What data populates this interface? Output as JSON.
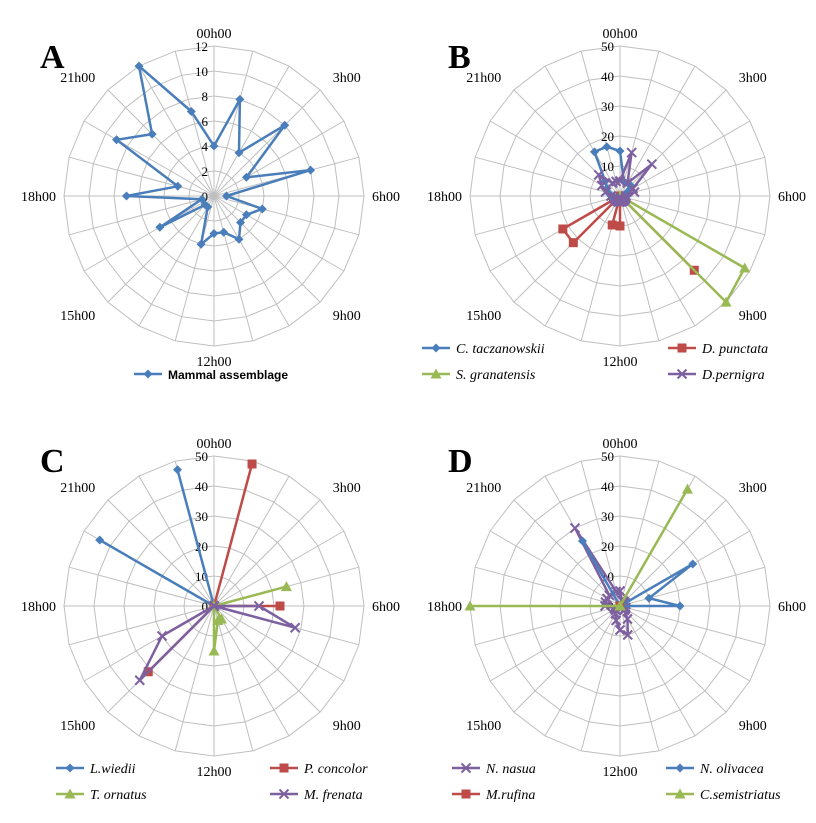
{
  "hour_labels": [
    "00h00",
    "3h00",
    "6h00",
    "9h00",
    "12h00",
    "15h00",
    "18h00",
    "21h00"
  ],
  "colors": {
    "blue": "#4a7ebb",
    "red": "#be4b48",
    "green": "#98b954",
    "purple": "#7d60a0",
    "grid": "#bfbfbf"
  },
  "chart_data": [
    {
      "type": "radar",
      "panel": "A",
      "rmax": 12,
      "ticks": [
        0,
        2,
        4,
        6,
        8,
        10,
        12
      ],
      "categories_per_hour": 1,
      "series": [
        {
          "name": "Mammal assemblage",
          "color": "blue",
          "marker": "diamond",
          "values": [
            4,
            8,
            4,
            8,
            3,
            8,
            1,
            4,
            3,
            3,
            4,
            3,
            3,
            4,
            1,
            1,
            5,
            1,
            7,
            3,
            9,
            7,
            12,
            7
          ]
        }
      ]
    },
    {
      "type": "radar",
      "panel": "B",
      "rmax": 50,
      "ticks": [
        0,
        10,
        20,
        30,
        40,
        50
      ],
      "series": [
        {
          "name": "C. taczanowskii",
          "color": "blue",
          "marker": "diamond",
          "values": [
            15,
            5,
            5,
            5,
            3,
            3,
            2,
            2,
            2,
            2,
            2,
            2,
            2,
            2,
            2,
            2,
            2,
            2,
            3,
            4,
            5,
            7,
            17,
            17
          ]
        },
        {
          "name": "D. punctata",
          "color": "red",
          "marker": "square",
          "values": [
            0,
            0,
            0,
            0,
            0,
            0,
            0,
            0,
            0,
            35,
            0,
            0,
            10,
            10,
            0,
            22,
            22,
            0,
            0,
            0,
            0,
            0,
            0,
            0
          ]
        },
        {
          "name": "S. granatensis",
          "color": "green",
          "marker": "triangle",
          "values": [
            0,
            0,
            0,
            0,
            0,
            0,
            0,
            0,
            48,
            50,
            0,
            0,
            0,
            0,
            0,
            0,
            0,
            0,
            0,
            0,
            0,
            0,
            0,
            0
          ]
        },
        {
          "name": "D.pernigra",
          "color": "purple",
          "marker": "x",
          "values": [
            5,
            15,
            5,
            15,
            5,
            5,
            2,
            2,
            2,
            2,
            2,
            2,
            2,
            2,
            2,
            2,
            2,
            2,
            3,
            5,
            7,
            10,
            5,
            5
          ]
        }
      ]
    },
    {
      "type": "radar",
      "panel": "C",
      "rmax": 50,
      "ticks": [
        0,
        10,
        20,
        30,
        40,
        50
      ],
      "series": [
        {
          "name": "L.wiedii",
          "color": "blue",
          "marker": "diamond",
          "values": [
            0,
            0,
            0,
            0,
            0,
            0,
            0,
            0,
            0,
            0,
            0,
            0,
            0,
            0,
            0,
            0,
            0,
            0,
            0,
            0,
            44,
            0,
            0,
            47
          ]
        },
        {
          "name": "P. concolor",
          "color": "red",
          "marker": "square",
          "values": [
            0,
            49,
            0,
            0,
            0,
            0,
            22,
            0,
            0,
            0,
            0,
            0,
            0,
            0,
            0,
            31,
            0,
            0,
            0,
            0,
            0,
            0,
            0,
            0
          ]
        },
        {
          "name": "T. ornatus",
          "color": "green",
          "marker": "triangle",
          "values": [
            0,
            0,
            0,
            0,
            0,
            25,
            0,
            0,
            0,
            0,
            5,
            5,
            15,
            0,
            0,
            0,
            0,
            0,
            0,
            0,
            0,
            0,
            0,
            0
          ]
        },
        {
          "name": "M. frenata",
          "color": "purple",
          "marker": "x",
          "values": [
            0,
            0,
            0,
            0,
            0,
            0,
            15,
            28,
            0,
            0,
            0,
            0,
            0,
            0,
            0,
            35,
            20,
            0,
            0,
            0,
            0,
            0,
            0,
            0
          ]
        }
      ]
    },
    {
      "type": "radar",
      "panel": "D",
      "rmax": 50,
      "ticks": [
        0,
        10,
        20,
        30,
        40,
        50
      ],
      "series": [
        {
          "name": "N. nasua",
          "color": "purple",
          "marker": "x",
          "values": [
            5,
            2,
            2,
            2,
            2,
            2,
            0,
            2,
            2,
            2,
            5,
            10,
            8,
            5,
            3,
            2,
            2,
            2,
            5,
            5,
            5,
            5,
            30,
            5
          ]
        },
        {
          "name": "N. olivacea",
          "color": "blue",
          "marker": "diamond",
          "values": [
            0,
            0,
            0,
            0,
            28,
            10,
            20,
            0,
            0,
            0,
            0,
            0,
            0,
            0,
            0,
            0,
            0,
            0,
            0,
            0,
            0,
            0,
            25,
            0
          ]
        },
        {
          "name": "M.rufina",
          "color": "red",
          "marker": "square",
          "values": [
            0,
            0,
            0,
            0,
            0,
            0,
            0,
            0,
            0,
            0,
            0,
            0,
            0,
            0,
            0,
            0,
            0,
            0,
            0,
            0,
            0,
            0,
            0,
            0
          ]
        },
        {
          "name": "C.semistriatus",
          "color": "green",
          "marker": "triangle",
          "values": [
            0,
            0,
            45,
            0,
            0,
            0,
            0,
            0,
            0,
            0,
            0,
            0,
            0,
            0,
            0,
            0,
            0,
            0,
            50,
            0,
            0,
            0,
            0,
            0
          ]
        }
      ]
    }
  ]
}
